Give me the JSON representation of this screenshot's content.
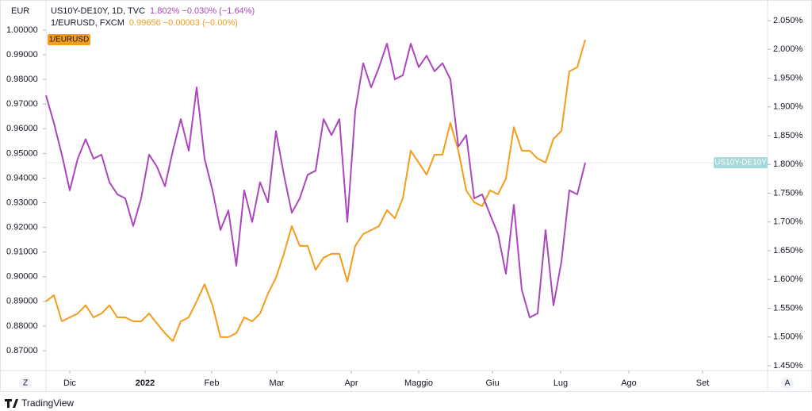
{
  "chart_data": {
    "type": "line",
    "header_lines": [
      {
        "text": "US10Y-DE10Y, 1D, TVC",
        "quote": "1.802%  −0.030% (−1.64%)",
        "color": "#ab47bc"
      },
      {
        "text": "1/EURUSD, FXCM",
        "quote": "0.99656  −0.00003 (−0.00%)",
        "color": "#f59c1a"
      }
    ],
    "ylabel": "EUR",
    "xlim": [
      0,
      91
    ],
    "xticks": [
      {
        "value": 3,
        "label": "Dic"
      },
      {
        "value": 12.5,
        "label": "2022",
        "bold": true
      },
      {
        "value": 20.9,
        "label": "Feb"
      },
      {
        "value": 29.1,
        "label": "Mar"
      },
      {
        "value": 38.5,
        "label": "Apr"
      },
      {
        "value": 47,
        "label": "Maggio"
      },
      {
        "value": 56.3,
        "label": "Giu"
      },
      {
        "value": 64.9,
        "label": "Lug"
      },
      {
        "value": 73.5,
        "label": "Ago"
      },
      {
        "value": 82.8,
        "label": "Set"
      }
    ],
    "ylim": [
      0.8626,
      1.0106
    ],
    "yticks": [
      {
        "value": 1.0,
        "label": "1.00000"
      },
      {
        "value": 0.99,
        "label": "0.99000"
      },
      {
        "value": 0.98,
        "label": "0.98000"
      },
      {
        "value": 0.97,
        "label": "0.97000"
      },
      {
        "value": 0.96,
        "label": "0.96000"
      },
      {
        "value": 0.95,
        "label": "0.95000"
      },
      {
        "value": 0.94,
        "label": "0.94000"
      },
      {
        "value": 0.93,
        "label": "0.93000"
      },
      {
        "value": 0.92,
        "label": "0.92000"
      },
      {
        "value": 0.91,
        "label": "0.91000"
      },
      {
        "value": 0.9,
        "label": "0.90000"
      },
      {
        "value": 0.89,
        "label": "0.89000"
      },
      {
        "value": 0.88,
        "label": "0.88000"
      },
      {
        "value": 0.87,
        "label": "0.87000"
      }
    ],
    "y2lim": [
      1.4445,
      2.079
    ],
    "y2ticks": [
      {
        "value": 2.05,
        "label": "2.050%"
      },
      {
        "value": 2.0,
        "label": "2.000%"
      },
      {
        "value": 1.95,
        "label": "1.950%"
      },
      {
        "value": 1.9,
        "label": "1.900%"
      },
      {
        "value": 1.85,
        "label": "1.850%"
      },
      {
        "value": 1.8,
        "label": "1.800%"
      },
      {
        "value": 1.75,
        "label": "1.750%"
      },
      {
        "value": 1.7,
        "label": "1.700%"
      },
      {
        "value": 1.65,
        "label": "1.650%"
      },
      {
        "value": 1.6,
        "label": "1.600%"
      },
      {
        "value": 1.55,
        "label": "1.550%"
      },
      {
        "value": 1.5,
        "label": "1.500%"
      },
      {
        "value": 1.45,
        "label": "1.450%"
      }
    ],
    "series": [
      {
        "name": "1/EURUSD",
        "color": "#f59c1a",
        "axis": "y",
        "values": [
          0.89,
          0.8925,
          0.8819,
          0.8835,
          0.8851,
          0.8884,
          0.8835,
          0.8851,
          0.8884,
          0.8835,
          0.8835,
          0.8819,
          0.8819,
          0.8851,
          0.881,
          0.8771,
          0.8739,
          0.8819,
          0.8835,
          0.89,
          0.897,
          0.8884,
          0.8755,
          0.8755,
          0.8771,
          0.8835,
          0.8819,
          0.8851,
          0.8932,
          0.8996,
          0.9093,
          0.9205,
          0.9125,
          0.9125,
          0.9028,
          0.9077,
          0.9093,
          0.9093,
          0.898,
          0.9125,
          0.9173,
          0.9189,
          0.9205,
          0.927,
          0.9237,
          0.9318,
          0.9511,
          0.9463,
          0.9414,
          0.9495,
          0.9495,
          0.9624,
          0.9511,
          0.935,
          0.9302,
          0.9286,
          0.935,
          0.9334,
          0.9398,
          0.9607,
          0.9511,
          0.9511,
          0.9479,
          0.9463,
          0.9559,
          0.9591,
          0.9833,
          0.9849,
          0.9961
        ]
      },
      {
        "name": "US10Y-DE10Y",
        "color": "#ab47bc",
        "axis": "y2",
        "tag_color": "#a5d8da",
        "values": [
          1.92,
          1.872,
          1.817,
          1.755,
          1.81,
          1.844,
          1.81,
          1.817,
          1.769,
          1.748,
          1.741,
          1.693,
          1.741,
          1.817,
          1.796,
          1.762,
          1.824,
          1.879,
          1.824,
          1.934,
          1.81,
          1.755,
          1.686,
          1.72,
          1.624,
          1.755,
          1.7,
          1.769,
          1.734,
          1.858,
          1.782,
          1.716,
          1.741,
          1.782,
          1.789,
          1.879,
          1.851,
          1.879,
          1.7,
          1.893,
          1.976,
          1.934,
          1.969,
          2.01,
          1.948,
          1.955,
          2.01,
          1.969,
          1.989,
          1.962,
          1.976,
          1.948,
          1.831,
          1.851,
          1.741,
          1.748,
          1.713,
          1.679,
          1.61,
          1.73,
          1.582,
          1.534,
          1.541,
          1.686,
          1.555,
          1.631,
          1.755,
          1.748,
          1.803
        ]
      }
    ],
    "left_button": "Z",
    "right_button": "A",
    "brand": "TradingView"
  }
}
